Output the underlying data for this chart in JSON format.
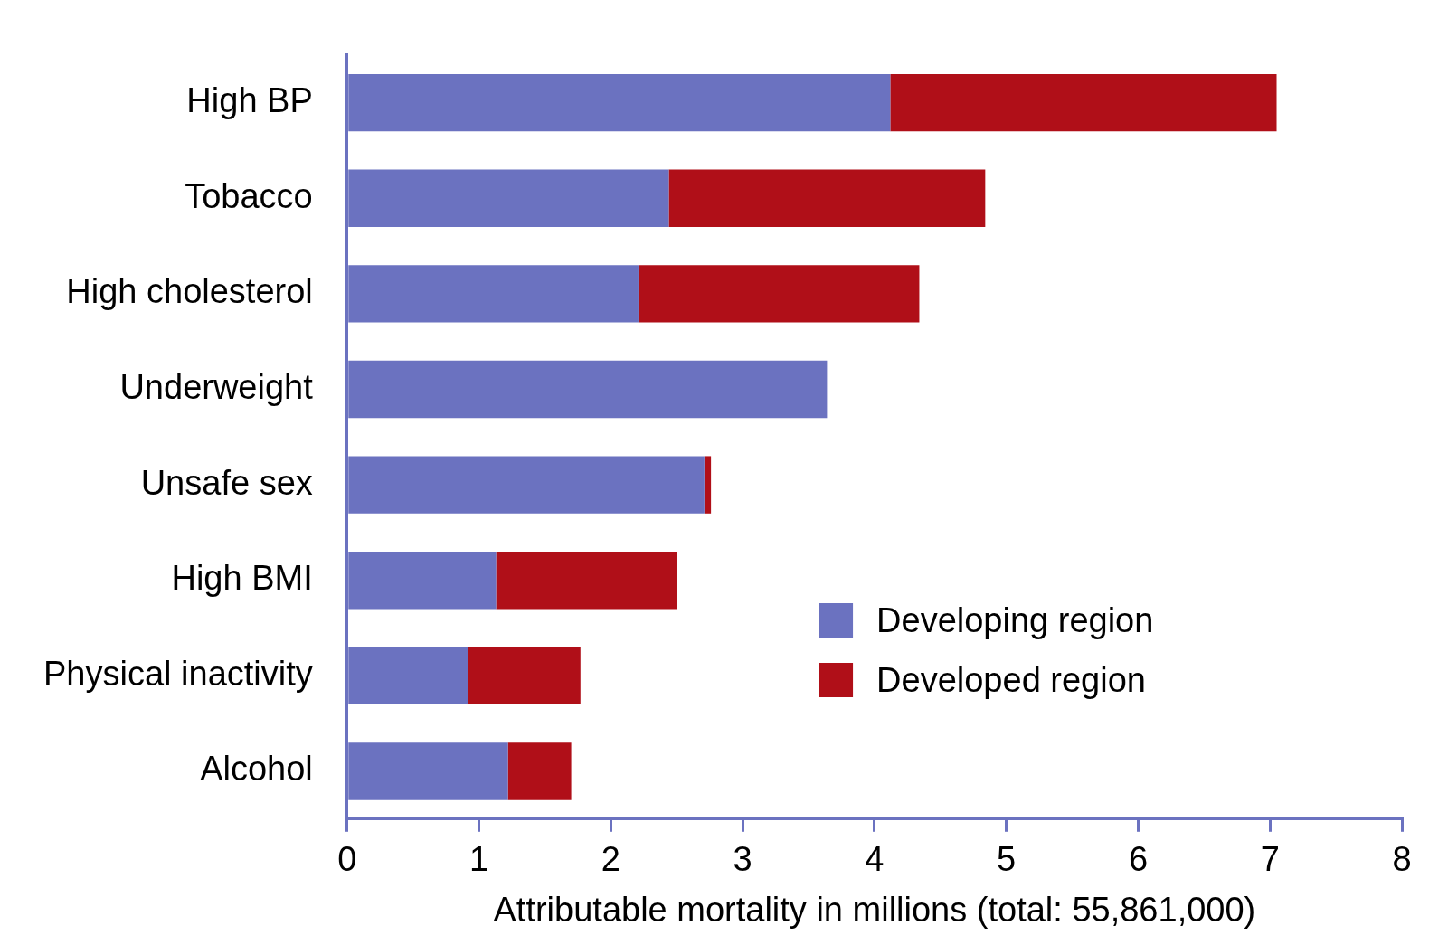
{
  "chart_data": {
    "type": "bar",
    "orientation": "horizontal",
    "stacked": true,
    "xlabel": "Attributable mortality in millions (total: 55,861,000)",
    "categories": [
      "High BP",
      "Tobacco",
      "High cholesterol",
      "Underweight",
      "Unsafe sex",
      "High BMI",
      "Physical inactivity",
      "Alcohol"
    ],
    "series": [
      {
        "name": "Developing region",
        "color": "#6b72c0",
        "values": [
          4.12,
          2.44,
          2.21,
          3.64,
          2.71,
          1.13,
          0.92,
          1.22
        ]
      },
      {
        "name": "Developed region",
        "color": "#b00f18",
        "values": [
          2.93,
          2.4,
          2.13,
          0,
          0.05,
          1.37,
          0.85,
          0.48
        ]
      }
    ],
    "xlim": [
      0,
      8
    ],
    "xticks": [
      0,
      1,
      2,
      3,
      4,
      5,
      6,
      7,
      8
    ],
    "grid": false,
    "legend": "bottom right"
  }
}
